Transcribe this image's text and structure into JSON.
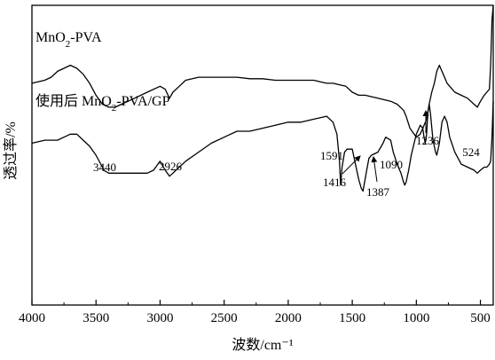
{
  "chart_data": {
    "type": "line",
    "xlabel": "波数/cm⁻¹",
    "ylabel": "透过率/%",
    "xlim": [
      4000,
      400
    ],
    "x_reversed": true,
    "xticks": [
      4000,
      3500,
      3000,
      2500,
      2000,
      1500,
      1000,
      500
    ],
    "y_tick_labels": false,
    "grid": false,
    "series": [
      {
        "name_parts": [
          "MnO",
          "2",
          "-PVA"
        ],
        "x": [
          4000,
          3900,
          3850,
          3800,
          3750,
          3700,
          3650,
          3600,
          3550,
          3500,
          3450,
          3400,
          3350,
          3300,
          3200,
          3100,
          3000,
          2960,
          2926,
          2900,
          2850,
          2800,
          2700,
          2600,
          2500,
          2400,
          2300,
          2200,
          2100,
          2000,
          1900,
          1800,
          1750,
          1700,
          1650,
          1600,
          1550,
          1500,
          1450,
          1400,
          1300,
          1200,
          1150,
          1100,
          1080,
          1050,
          1000,
          970,
          950,
          920,
          900,
          880,
          860,
          840,
          820,
          800,
          780,
          760,
          740,
          700,
          650,
          600,
          550,
          524,
          500,
          470,
          450,
          430,
          420,
          410,
          400
        ],
        "y": [
          74,
          75,
          76,
          78,
          79,
          80,
          79,
          77,
          74,
          70,
          67,
          66,
          66,
          67,
          69,
          71,
          73,
          72,
          69,
          71,
          73,
          75,
          76,
          76,
          76,
          76,
          75.5,
          75.5,
          75,
          75,
          75,
          75,
          74.5,
          74,
          74,
          73.5,
          73,
          71,
          70,
          70,
          69,
          68,
          67,
          65,
          63,
          59,
          56,
          57,
          59,
          62,
          67,
          71,
          74,
          78,
          80,
          78,
          76,
          74,
          73,
          71,
          70,
          69,
          67,
          66,
          68,
          70,
          71,
          72,
          80,
          95,
          100
        ]
      },
      {
        "name_parts": [
          "使用后 MnO",
          "2",
          "-PVA/GP"
        ],
        "x": [
          4000,
          3900,
          3800,
          3750,
          3700,
          3650,
          3600,
          3550,
          3500,
          3450,
          3440,
          3400,
          3350,
          3300,
          3200,
          3100,
          3050,
          3000,
          2960,
          2926,
          2900,
          2850,
          2800,
          2700,
          2600,
          2500,
          2400,
          2300,
          2200,
          2100,
          2000,
          1900,
          1800,
          1750,
          1700,
          1650,
          1620,
          1600,
          1591,
          1580,
          1560,
          1540,
          1500,
          1470,
          1450,
          1430,
          1416,
          1400,
          1387,
          1370,
          1350,
          1300,
          1260,
          1240,
          1200,
          1180,
          1150,
          1120,
          1100,
          1090,
          1080,
          1060,
          1040,
          1000,
          970,
          950,
          940,
          930,
          920,
          910,
          900,
          890,
          870,
          850,
          840,
          820,
          800,
          780,
          760,
          740,
          700,
          650,
          600,
          550,
          524,
          500,
          470,
          450,
          430,
          420,
          410,
          400
        ],
        "y": [
          54,
          55,
          55,
          56,
          57,
          57,
          55,
          53,
          50,
          46,
          45,
          44,
          44,
          44,
          44,
          44,
          45,
          48,
          45,
          43,
          44,
          46,
          48,
          51,
          54,
          56,
          58,
          58,
          59,
          60,
          61,
          61,
          62,
          62.5,
          63,
          61,
          57,
          48,
          40,
          46,
          51,
          52,
          52,
          46,
          42,
          39,
          38,
          42,
          45,
          49,
          50,
          51,
          54,
          56,
          55,
          51,
          47,
          44,
          41,
          40,
          41,
          45,
          50,
          57,
          60,
          59,
          56,
          54,
          57,
          64,
          67,
          64,
          55,
          51,
          50,
          54,
          61,
          63,
          61,
          56,
          51,
          47,
          46,
          45,
          44,
          45,
          46,
          46,
          47,
          48,
          56,
          68
        ]
      }
    ],
    "annotations": [
      {
        "text": "3440",
        "x": 3440,
        "arrow": false
      },
      {
        "text": "2926",
        "x": 2926,
        "arrow": false
      },
      {
        "text": "1591",
        "x": 1591,
        "arrow": false
      },
      {
        "text": "1416",
        "x": 1416,
        "arrow": true
      },
      {
        "text": "1387",
        "x": 1387,
        "arrow": true
      },
      {
        "text": "1090",
        "x": 1090,
        "arrow": false
      },
      {
        "text": "1236",
        "x": 1236,
        "arrow": true
      },
      {
        "text": "524",
        "x": 524,
        "arrow": false
      }
    ]
  }
}
